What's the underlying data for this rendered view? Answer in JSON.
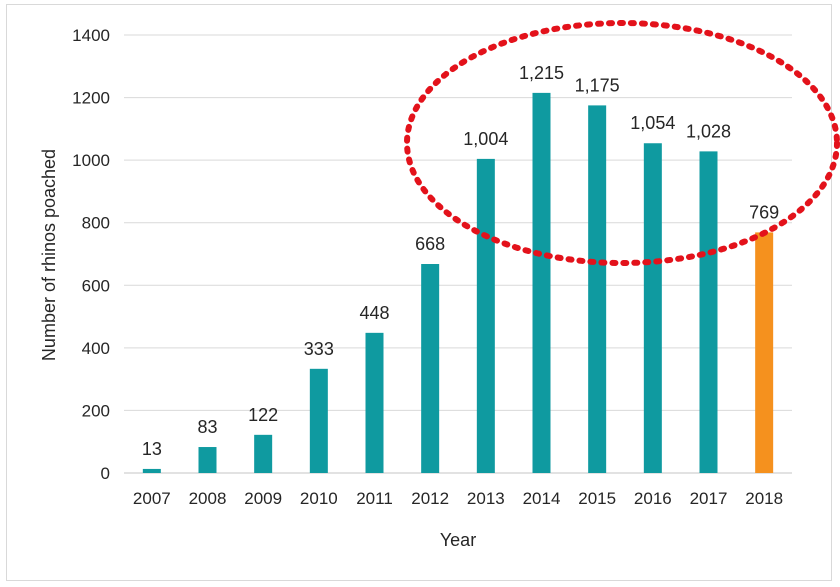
{
  "chart_data": {
    "type": "bar",
    "title": "",
    "xlabel": "Year",
    "ylabel": "Number  of rhinos poached",
    "ylim": [
      0,
      1400
    ],
    "yticks": [
      0,
      200,
      400,
      600,
      800,
      1000,
      1200,
      1400
    ],
    "grid": true,
    "legend": "none",
    "categories": [
      "2007",
      "2008",
      "2009",
      "2010",
      "2011",
      "2012",
      "2013",
      "2014",
      "2015",
      "2016",
      "2017",
      "2018"
    ],
    "values": [
      13,
      83,
      122,
      333,
      448,
      668,
      1004,
      1215,
      1175,
      1054,
      1028,
      769
    ],
    "data_labels": [
      "13",
      "83",
      "122",
      "333",
      "448",
      "668",
      "1,004",
      "1,215",
      "1,175",
      "1,054",
      "1,028",
      "769"
    ],
    "colors": {
      "default_bar": "#0f9aa0",
      "highlight_bar": "#f5911e",
      "annotation_ellipse": "#e3121b",
      "gridline": "#d9d9d9"
    },
    "highlighted_categories": [
      "2018"
    ],
    "annotation": {
      "shape": "dotted-ellipse",
      "encloses_categories": [
        "2014",
        "2015",
        "2016",
        "2017"
      ]
    }
  }
}
